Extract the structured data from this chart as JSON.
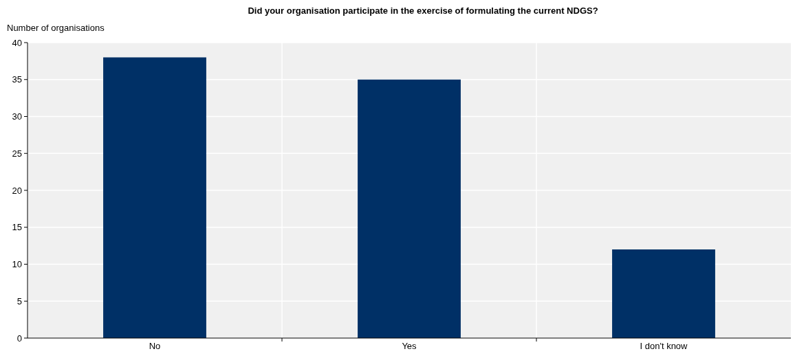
{
  "chart_data": {
    "type": "bar",
    "title": "Did your organisation participate in the exercise of formulating the current NDGS?",
    "ylabel": "Number of organisations",
    "categories": [
      "No",
      "Yes",
      "I don't know"
    ],
    "values": [
      38,
      35,
      12
    ],
    "color": "#003066",
    "ylim": [
      0,
      40
    ],
    "yticks": [
      0,
      5,
      10,
      15,
      20,
      25,
      30,
      35,
      40
    ],
    "grid": true
  }
}
